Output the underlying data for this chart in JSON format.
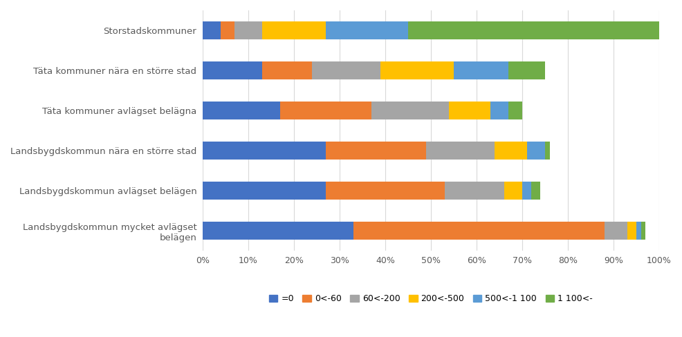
{
  "categories": [
    "Storstadskommuner",
    "Täta kommuner nära en större stad",
    "Täta kommuner avlägset belägna",
    "Landsbygdskommun nära en större stad",
    "Landsbygdskommun avlägset belägen",
    "Landsbygdskommun mycket avlägset\nbelägen"
  ],
  "series": {
    "=0": [
      4,
      13,
      17,
      27,
      27,
      33
    ],
    "0<-60": [
      3,
      11,
      20,
      22,
      26,
      55
    ],
    "60<-200": [
      6,
      15,
      17,
      15,
      13,
      5
    ],
    "200<-500": [
      14,
      16,
      9,
      7,
      4,
      2
    ],
    "500<-1 100": [
      18,
      12,
      4,
      4,
      2,
      1
    ],
    "1 100<-": [
      55,
      8,
      3,
      1,
      2,
      1
    ]
  },
  "colors": {
    "=0": "#4472C4",
    "0<-60": "#ED7D31",
    "60<-200": "#A5A5A5",
    "200<-500": "#FFC000",
    "500<-1 100": "#5B9BD5",
    "1 100<-": "#70AD47"
  },
  "legend_labels": [
    "=0",
    "0<-60",
    "60<-200",
    "200<-500",
    "500<-1 100",
    "1 100<-"
  ],
  "xlabel_ticks": [
    "0%",
    "10%",
    "20%",
    "30%",
    "40%",
    "50%",
    "60%",
    "70%",
    "80%",
    "90%",
    "100%"
  ],
  "xlabel_vals": [
    0,
    10,
    20,
    30,
    40,
    50,
    60,
    70,
    80,
    90,
    100
  ],
  "background_color": "#FFFFFF",
  "grid_color": "#D9D9D9",
  "bar_height": 0.45,
  "figsize": [
    9.86,
    4.88
  ],
  "dpi": 100
}
